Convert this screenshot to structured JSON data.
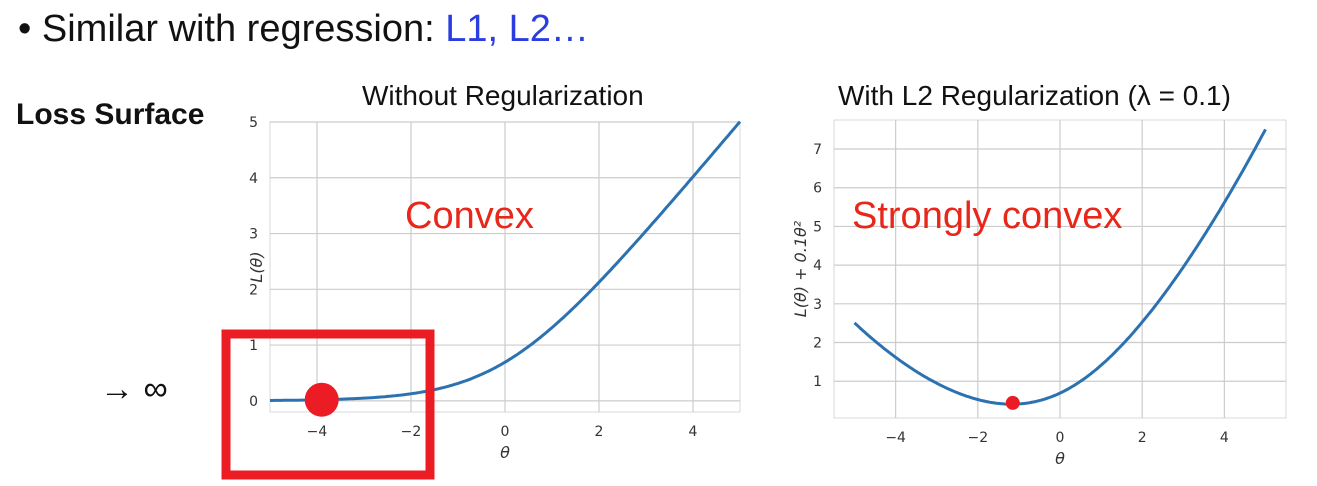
{
  "heading": {
    "bullet": "•",
    "text": "Similar with regression: ",
    "highlight": "L1, L2…"
  },
  "side_label": "Loss Surface",
  "arrow_label": "→ ∞",
  "colors": {
    "line": "#2c72b0",
    "marker": "#ec1c24",
    "highlight_box": "#ec1c24",
    "heading_highlight": "#2b3ce0"
  },
  "chart_data": [
    {
      "type": "line",
      "title": "Without Regularization",
      "xlabel": "θ",
      "ylabel": "L(θ)",
      "xlim": [
        -5,
        5
      ],
      "ylim": [
        -0.2,
        5
      ],
      "xticks": [
        -4,
        -2,
        0,
        2,
        4
      ],
      "yticks": [
        0,
        1,
        2,
        3,
        4,
        5
      ],
      "grid": true,
      "annotation": "Convex",
      "marker": {
        "x": -3.9,
        "y": 0.02
      },
      "series": [
        {
          "x": [
            -5,
            -4,
            -3,
            -2,
            -1,
            0,
            1,
            2,
            3,
            4,
            5
          ],
          "y": [
            0.007,
            0.018,
            0.049,
            0.127,
            0.313,
            0.693,
            1.313,
            2.127,
            3.049,
            4.018,
            5.007
          ]
        }
      ]
    },
    {
      "type": "line",
      "title": "With L2 Regularization (λ = 0.1)",
      "xlabel": "θ",
      "ylabel": "L(θ) + 0.1θ²",
      "xlim": [
        -5.5,
        5.5
      ],
      "ylim": [
        0.05,
        7.75
      ],
      "xticks": [
        -4,
        -2,
        0,
        2,
        4
      ],
      "yticks": [
        1,
        2,
        3,
        4,
        5,
        6,
        7
      ],
      "grid": true,
      "annotation": "Strongly convex",
      "marker": {
        "x": -1.15,
        "y": 0.44
      },
      "series": [
        {
          "x": [
            -5,
            -4,
            -3,
            -2,
            -1,
            0,
            1,
            2,
            3,
            4,
            5
          ],
          "y": [
            2.507,
            1.618,
            0.949,
            0.527,
            0.413,
            0.693,
            1.413,
            2.527,
            3.949,
            5.618,
            7.507
          ]
        }
      ]
    }
  ]
}
